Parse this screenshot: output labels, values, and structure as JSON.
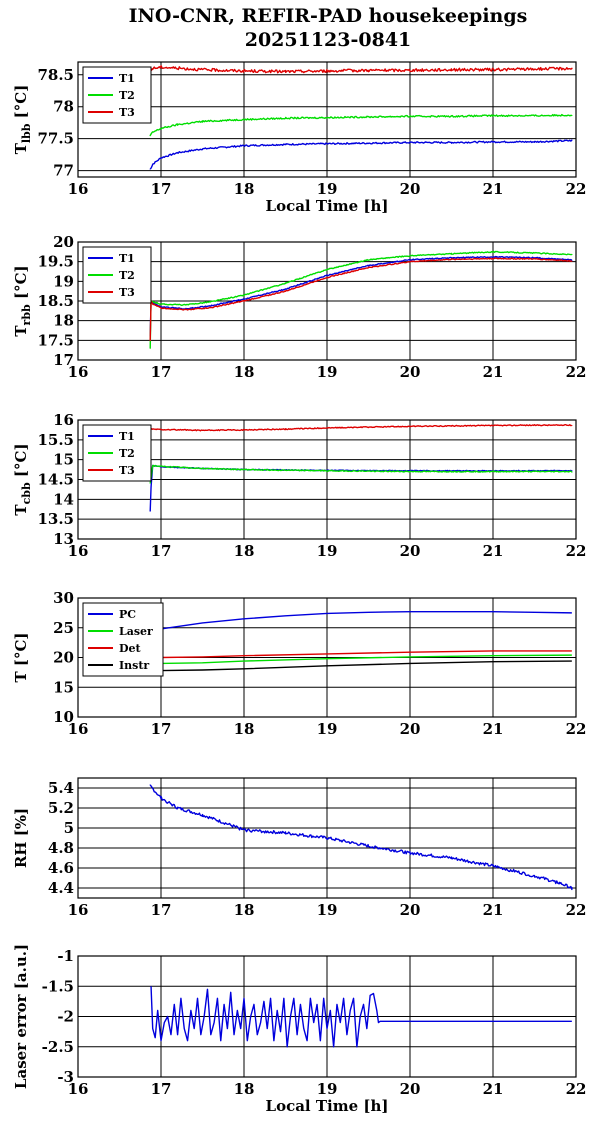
{
  "title_line1": "INO-CNR, REFIR-PAD housekeepings",
  "title_line2": "20251123-0841",
  "chart_data": [
    {
      "id": "tlbb",
      "type": "line",
      "ylabel_main": "T",
      "ylabel_sub": "lbb",
      "ylabel_unit": "[°C]",
      "xlabel": "Local Time [h]",
      "xlim": [
        16,
        22
      ],
      "ylim": [
        76.9,
        78.7
      ],
      "xticks": [
        16,
        17,
        18,
        19,
        20,
        21,
        22
      ],
      "yticks": [
        77,
        77.5,
        78,
        78.5
      ],
      "ytick_labels": [
        "77",
        "77.5",
        "78",
        "78.5"
      ],
      "grid": true,
      "legend": "top-left",
      "series": [
        {
          "name": "T1",
          "color": "#0000dd",
          "noise": 0.012,
          "x": [
            16.87,
            16.9,
            17.0,
            17.2,
            17.5,
            18.0,
            18.5,
            19.0,
            19.5,
            20.0,
            20.5,
            21.0,
            21.5,
            21.95
          ],
          "y": [
            77.02,
            77.1,
            77.2,
            77.28,
            77.34,
            77.39,
            77.41,
            77.42,
            77.43,
            77.44,
            77.44,
            77.45,
            77.45,
            77.47
          ]
        },
        {
          "name": "T2",
          "color": "#00dd00",
          "noise": 0.012,
          "x": [
            16.87,
            16.9,
            17.0,
            17.2,
            17.5,
            18.0,
            18.5,
            19.0,
            19.5,
            20.0,
            20.5,
            21.0,
            21.5,
            21.95
          ],
          "y": [
            77.55,
            77.6,
            77.66,
            77.72,
            77.77,
            77.8,
            77.82,
            77.83,
            77.84,
            77.85,
            77.85,
            77.86,
            77.86,
            77.87
          ]
        },
        {
          "name": "T3",
          "color": "#dd0000",
          "noise": 0.022,
          "x": [
            16.87,
            16.9,
            17.0,
            17.5,
            18.0,
            18.5,
            19.0,
            19.5,
            20.0,
            20.5,
            21.0,
            21.5,
            21.95
          ],
          "y": [
            78.55,
            78.6,
            78.62,
            78.58,
            78.56,
            78.55,
            78.56,
            78.57,
            78.57,
            78.58,
            78.58,
            78.59,
            78.6
          ]
        }
      ]
    },
    {
      "id": "trbb",
      "type": "line",
      "ylabel_main": "T",
      "ylabel_sub": "rbb",
      "ylabel_unit": "[°C]",
      "xlabel": "",
      "xlim": [
        16,
        22
      ],
      "ylim": [
        17,
        20
      ],
      "xticks": [
        16,
        17,
        18,
        19,
        20,
        21,
        22
      ],
      "yticks": [
        17,
        17.5,
        18,
        18.5,
        19,
        19.5,
        20
      ],
      "ytick_labels": [
        "17",
        "17.5",
        "18",
        "18.5",
        "19",
        "19.5",
        "20"
      ],
      "grid": true,
      "legend": "top-left",
      "series": [
        {
          "name": "T1",
          "color": "#0000dd",
          "noise": 0.012,
          "x": [
            16.87,
            16.88,
            16.9,
            16.95,
            17.0,
            17.3,
            17.6,
            18.0,
            18.5,
            19.0,
            19.5,
            20.0,
            20.5,
            21.0,
            21.5,
            21.95
          ],
          "y": [
            17.6,
            18.5,
            18.45,
            18.4,
            18.35,
            18.3,
            18.38,
            18.55,
            18.8,
            19.15,
            19.4,
            19.55,
            19.6,
            19.62,
            19.6,
            19.55
          ]
        },
        {
          "name": "T2",
          "color": "#00dd00",
          "noise": 0.012,
          "x": [
            16.87,
            16.88,
            16.9,
            16.95,
            17.0,
            17.3,
            17.6,
            18.0,
            18.5,
            19.0,
            19.5,
            20.0,
            20.5,
            21.0,
            21.5,
            21.95
          ],
          "y": [
            17.3,
            18.5,
            18.48,
            18.45,
            18.42,
            18.4,
            18.48,
            18.65,
            18.95,
            19.3,
            19.55,
            19.65,
            19.7,
            19.75,
            19.72,
            19.68
          ]
        },
        {
          "name": "T3",
          "color": "#dd0000",
          "noise": 0.012,
          "x": [
            16.87,
            16.88,
            16.9,
            16.95,
            17.0,
            17.3,
            17.6,
            18.0,
            18.5,
            19.0,
            19.5,
            20.0,
            20.5,
            21.0,
            21.5,
            21.95
          ],
          "y": [
            17.5,
            18.5,
            18.42,
            18.38,
            18.32,
            18.28,
            18.33,
            18.5,
            18.75,
            19.1,
            19.35,
            19.5,
            19.56,
            19.58,
            19.57,
            19.52
          ]
        }
      ]
    },
    {
      "id": "tcbb",
      "type": "line",
      "ylabel_main": "T",
      "ylabel_sub": "cbb",
      "ylabel_unit": "[°C]",
      "xlabel": "",
      "xlim": [
        16,
        22
      ],
      "ylim": [
        13,
        16
      ],
      "xticks": [
        16,
        17,
        18,
        19,
        20,
        21,
        22
      ],
      "yticks": [
        13,
        13.5,
        14,
        14.5,
        15,
        15.5,
        16
      ],
      "ytick_labels": [
        "13",
        "13.5",
        "14",
        "14.5",
        "15",
        "15.5",
        "16"
      ],
      "grid": true,
      "legend": "top-left",
      "series": [
        {
          "name": "T1",
          "color": "#0000dd",
          "noise": 0.01,
          "x": [
            16.87,
            16.88,
            16.9,
            17.0,
            17.5,
            18.0,
            19.0,
            20.0,
            21.0,
            21.95
          ],
          "y": [
            13.7,
            14.3,
            14.85,
            14.82,
            14.78,
            14.75,
            14.73,
            14.72,
            14.72,
            14.72
          ]
        },
        {
          "name": "T2",
          "color": "#00dd00",
          "noise": 0.012,
          "x": [
            16.87,
            16.9,
            17.0,
            17.5,
            18.0,
            19.0,
            20.0,
            21.0,
            21.95
          ],
          "y": [
            14.4,
            14.85,
            14.83,
            14.78,
            14.75,
            14.72,
            14.7,
            14.7,
            14.7
          ]
        },
        {
          "name": "T3",
          "color": "#dd0000",
          "noise": 0.012,
          "x": [
            16.87,
            16.9,
            17.0,
            17.5,
            18.0,
            18.5,
            19.0,
            19.5,
            20.0,
            20.5,
            21.0,
            21.5,
            21.95
          ],
          "y": [
            15.78,
            15.77,
            15.76,
            15.74,
            15.75,
            15.77,
            15.8,
            15.82,
            15.84,
            15.85,
            15.86,
            15.87,
            15.87
          ]
        }
      ]
    },
    {
      "id": "temps",
      "type": "line",
      "ylabel_main": "T",
      "ylabel_sub": "",
      "ylabel_unit": "[°C]",
      "xlabel": "",
      "xlim": [
        16,
        22
      ],
      "ylim": [
        10,
        30
      ],
      "xticks": [
        16,
        17,
        18,
        19,
        20,
        21,
        22
      ],
      "yticks": [
        10,
        15,
        20,
        25,
        30
      ],
      "ytick_labels": [
        "10",
        "15",
        "20",
        "25",
        "30"
      ],
      "grid": true,
      "legend": "top-left",
      "series": [
        {
          "name": "PC",
          "color": "#0000dd",
          "noise": 0.0,
          "x": [
            16.87,
            17.0,
            17.5,
            18.0,
            18.5,
            19.0,
            19.5,
            20.0,
            21.0,
            21.5,
            21.95
          ],
          "y": [
            24.3,
            24.8,
            25.8,
            26.5,
            27.0,
            27.4,
            27.6,
            27.7,
            27.7,
            27.6,
            27.5
          ]
        },
        {
          "name": "Laser",
          "color": "#00dd00",
          "noise": 0.0,
          "x": [
            16.87,
            17.0,
            17.5,
            18.0,
            19.0,
            20.0,
            21.0,
            21.95
          ],
          "y": [
            19.0,
            19.0,
            19.1,
            19.4,
            19.8,
            20.1,
            20.3,
            20.4
          ]
        },
        {
          "name": "Det",
          "color": "#dd0000",
          "noise": 0.0,
          "x": [
            16.87,
            17.0,
            17.5,
            18.0,
            19.0,
            20.0,
            21.0,
            21.95
          ],
          "y": [
            20.0,
            20.0,
            20.1,
            20.3,
            20.6,
            20.9,
            21.1,
            21.1
          ]
        },
        {
          "name": "Instr",
          "color": "#000000",
          "noise": 0.0,
          "x": [
            16.87,
            17.0,
            17.5,
            18.0,
            19.0,
            20.0,
            21.0,
            21.95
          ],
          "y": [
            17.8,
            17.8,
            17.9,
            18.1,
            18.6,
            19.0,
            19.3,
            19.4
          ]
        }
      ]
    },
    {
      "id": "rh",
      "type": "line",
      "ylabel_main": "RH [%]",
      "ylabel_sub": "",
      "ylabel_unit": "",
      "xlabel": "",
      "xlim": [
        16,
        22
      ],
      "ylim": [
        4.3,
        5.5
      ],
      "xticks": [
        16,
        17,
        18,
        19,
        20,
        21,
        22
      ],
      "yticks": [
        4.4,
        4.6,
        4.8,
        5,
        5.2,
        5.4
      ],
      "ytick_labels": [
        "4.4",
        "4.6",
        "4.8",
        "5",
        "5.2",
        "5.4"
      ],
      "grid": true,
      "legend": "none",
      "series": [
        {
          "name": "",
          "color": "#0000dd",
          "noise": 0.015,
          "x": [
            16.87,
            17.0,
            17.2,
            17.5,
            18.0,
            18.5,
            19.0,
            19.5,
            20.0,
            20.5,
            21.0,
            21.5,
            21.8,
            21.95
          ],
          "y": [
            5.42,
            5.3,
            5.2,
            5.13,
            4.98,
            4.95,
            4.9,
            4.82,
            4.75,
            4.7,
            4.62,
            4.52,
            4.45,
            4.4
          ]
        }
      ]
    },
    {
      "id": "laser",
      "type": "line",
      "ylabel_main": "Laser error [a.u.]",
      "ylabel_sub": "",
      "ylabel_unit": "",
      "xlabel": "Local Time [h]",
      "xlim": [
        16,
        22
      ],
      "ylim": [
        -3,
        -1
      ],
      "xticks": [
        16,
        17,
        18,
        19,
        20,
        21,
        22
      ],
      "yticks": [
        -3,
        -2.5,
        -2,
        -1.5,
        -1
      ],
      "ytick_labels": [
        "-3",
        "-2.5",
        "-2",
        "-1.5",
        "-1"
      ],
      "grid": true,
      "legend": "none",
      "series": [
        {
          "name": "",
          "color": "#0000dd",
          "noise": 0.005,
          "x": [
            16.88,
            16.9,
            16.93,
            16.96,
            17.0,
            17.04,
            17.08,
            17.12,
            17.16,
            17.2,
            17.24,
            17.28,
            17.32,
            17.36,
            17.4,
            17.44,
            17.48,
            17.52,
            17.56,
            17.6,
            17.64,
            17.68,
            17.72,
            17.76,
            17.8,
            17.84,
            17.88,
            17.92,
            17.96,
            18.0,
            18.04,
            18.08,
            18.12,
            18.16,
            18.2,
            18.24,
            18.28,
            18.32,
            18.36,
            18.4,
            18.44,
            18.48,
            18.52,
            18.56,
            18.6,
            18.64,
            18.68,
            18.72,
            18.76,
            18.8,
            18.84,
            18.88,
            18.92,
            18.96,
            19.0,
            19.04,
            19.08,
            19.12,
            19.16,
            19.2,
            19.24,
            19.28,
            19.32,
            19.36,
            19.4,
            19.44,
            19.48,
            19.52,
            19.56,
            19.6,
            19.62,
            19.64,
            20.0,
            20.5,
            21.0,
            21.5,
            21.95
          ],
          "y": [
            -1.5,
            -2.2,
            -2.35,
            -1.9,
            -2.4,
            -2.1,
            -2.0,
            -2.3,
            -1.8,
            -2.3,
            -1.7,
            -2.2,
            -2.4,
            -1.9,
            -2.2,
            -1.7,
            -2.3,
            -2.0,
            -1.55,
            -2.3,
            -2.1,
            -1.7,
            -2.4,
            -1.8,
            -2.2,
            -1.6,
            -2.3,
            -1.9,
            -2.2,
            -1.7,
            -2.4,
            -2.0,
            -1.8,
            -2.3,
            -2.1,
            -1.75,
            -2.2,
            -1.7,
            -2.4,
            -1.9,
            -2.25,
            -1.7,
            -2.5,
            -2.0,
            -1.7,
            -2.3,
            -1.8,
            -2.2,
            -2.4,
            -1.7,
            -2.1,
            -1.8,
            -2.4,
            -1.7,
            -2.2,
            -1.9,
            -2.5,
            -1.8,
            -2.1,
            -1.7,
            -2.3,
            -1.9,
            -1.7,
            -2.5,
            -2.0,
            -1.8,
            -2.2,
            -1.65,
            -1.62,
            -1.9,
            -2.1,
            -2.08,
            -2.08,
            -2.08,
            -2.08,
            -2.08,
            -2.08
          ]
        }
      ]
    }
  ]
}
